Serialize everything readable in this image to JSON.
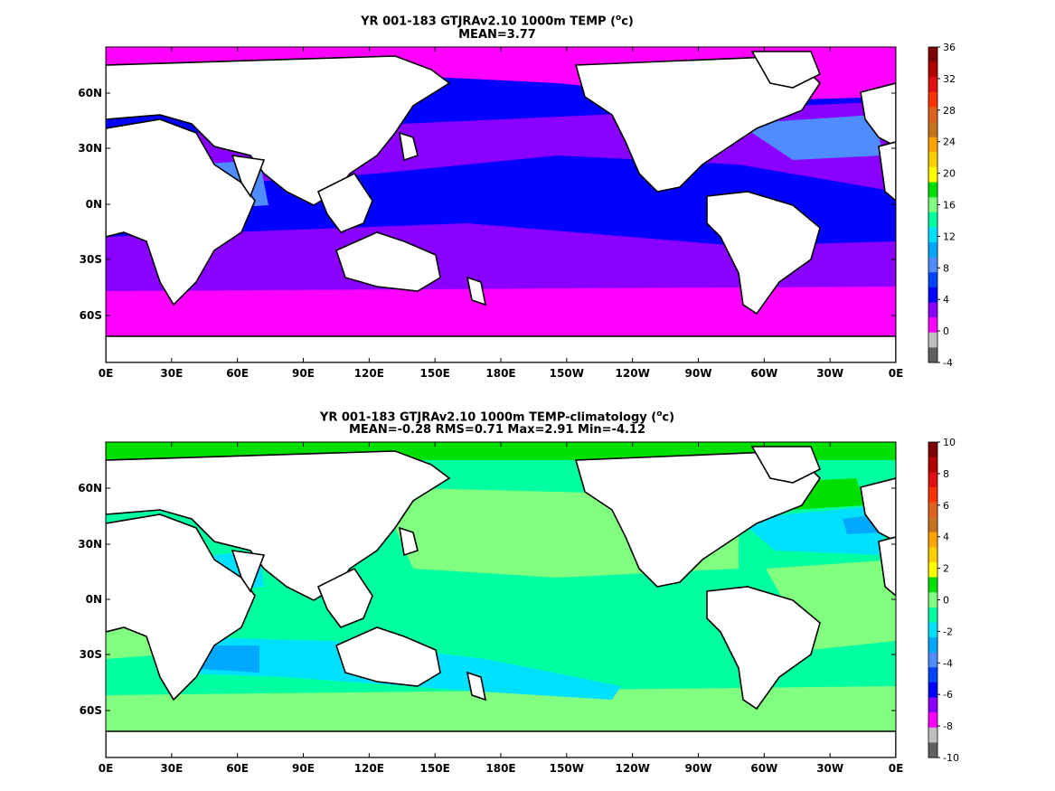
{
  "panels": [
    {
      "title_line1_prefix": "YR 001-183 GTJRAv2.10 1000m TEMP (",
      "title_sup": "o",
      "title_line1_suffix": "c)",
      "title_line2": "MEAN=3.77",
      "chart_data": {
        "type": "heatmap",
        "title": "YR 001-183 GTJRAv2.10 1000m TEMP (oc)",
        "subtitle": "MEAN=3.77",
        "stats": {
          "mean": 3.77
        },
        "xticks": [
          "0E",
          "30E",
          "60E",
          "90E",
          "120E",
          "150E",
          "180E",
          "150W",
          "120W",
          "90W",
          "60W",
          "30W",
          "0E"
        ],
        "yticks": [
          "60N",
          "30N",
          "0N",
          "30S",
          "60S"
        ],
        "colorbar_ticks": [
          "36",
          "32",
          "28",
          "24",
          "20",
          "16",
          "12",
          "8",
          "4",
          "0",
          "-4"
        ],
        "colorbar_colors": [
          "#7f0000",
          "#b30000",
          "#e01010",
          "#ff3300",
          "#e06020",
          "#c8731e",
          "#ffa500",
          "#ffd000",
          "#ffff00",
          "#00e000",
          "#80ff80",
          "#00ffa0",
          "#00e0ff",
          "#00a8ff",
          "#4f8cff",
          "#0044ff",
          "#0000ff",
          "#8a00ff",
          "#ff00ff",
          "#bebebe",
          "#606060"
        ],
        "colorbar_bounds": [
          -4,
          36
        ],
        "regions_description_units": "degC"
      },
      "colors": {
        "polar": "#ff00ff",
        "temperate": "#8a00ff",
        "tropical": "#0000ff",
        "warm": "#4f8cff",
        "warmest": "#00e0ff",
        "land": "#ffffff"
      }
    },
    {
      "title_line1_prefix": "YR 001-183 GTJRAv2.10 1000m TEMP-climatology (",
      "title_sup": "o",
      "title_line1_suffix": "c)",
      "title_line2": "MEAN=-0.28   RMS=0.71   Max=2.91   Min=-4.12",
      "chart_data": {
        "type": "heatmap",
        "title": "YR 001-183 GTJRAv2.10 1000m TEMP-climatology (oc)",
        "subtitle": "MEAN=-0.28   RMS=0.71   Max=2.91   Min=-4.12",
        "stats": {
          "mean": -0.28,
          "rms": 0.71,
          "max": 2.91,
          "min": -4.12
        },
        "xticks": [
          "0E",
          "30E",
          "60E",
          "90E",
          "120E",
          "150E",
          "180E",
          "150W",
          "120W",
          "90W",
          "60W",
          "30W",
          "0E"
        ],
        "yticks": [
          "60N",
          "30N",
          "0N",
          "30S",
          "60S"
        ],
        "colorbar_ticks": [
          "10",
          "8",
          "6",
          "4",
          "2",
          "0",
          "-2",
          "-4",
          "-6",
          "-8",
          "-10"
        ],
        "colorbar_colors": [
          "#7f0000",
          "#b30000",
          "#e01010",
          "#ff3300",
          "#e06020",
          "#c8731e",
          "#ffa500",
          "#ffd000",
          "#ffff00",
          "#00e000",
          "#80ff80",
          "#00ffa0",
          "#00e0ff",
          "#00a8ff",
          "#4f8cff",
          "#0044ff",
          "#0000ff",
          "#8a00ff",
          "#ff00ff",
          "#bebebe",
          "#606060"
        ],
        "colorbar_bounds": [
          -10,
          10
        ]
      },
      "colors": {
        "base": "#00ffa0",
        "positive": "#80ff80",
        "neg2": "#00e0ff",
        "neg4": "#00a8ff",
        "pos2": "#00e000",
        "land": "#ffffff"
      }
    }
  ]
}
